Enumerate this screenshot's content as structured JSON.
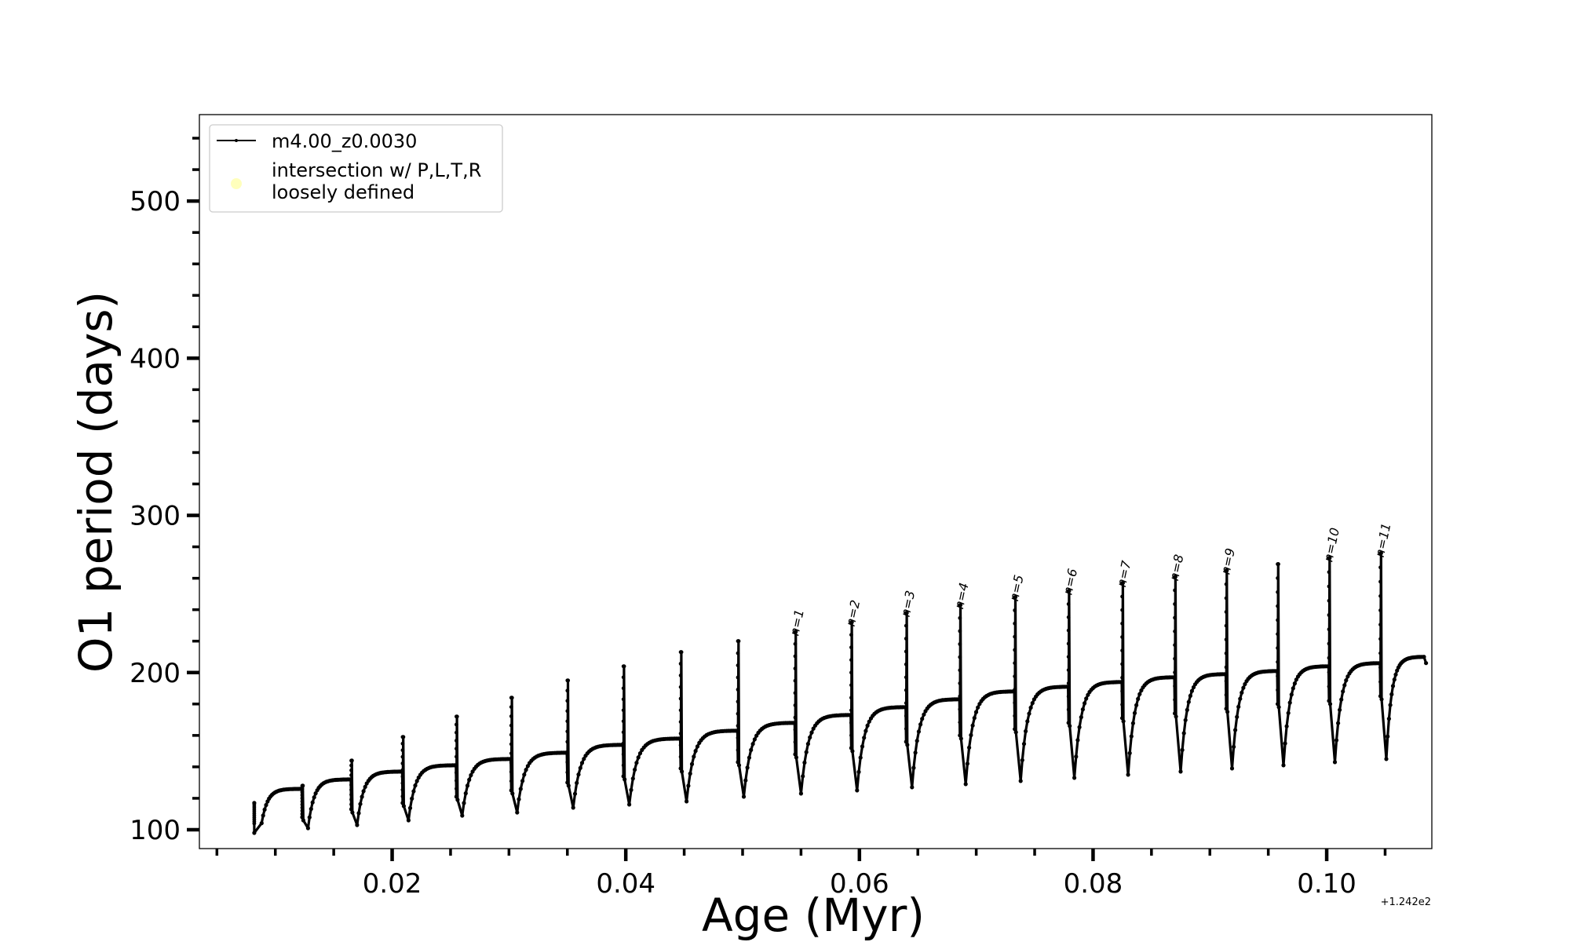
{
  "chart_data": {
    "type": "line",
    "title": "",
    "xlabel": "Age (Myr)",
    "ylabel": "O1 period (days)",
    "x_offset_label": "+1.242e2",
    "xlim": [
      0.0035,
      0.109
    ],
    "ylim": [
      88,
      555
    ],
    "x_ticks": [
      0.02,
      0.04,
      0.06,
      0.08,
      0.1
    ],
    "x_tick_labels": [
      "0.02",
      "0.04",
      "0.06",
      "0.08",
      "0.10"
    ],
    "x_minor_step": 0.005,
    "y_ticks": [
      100,
      200,
      300,
      400,
      500
    ],
    "y_tick_labels": [
      "100",
      "200",
      "300",
      "400",
      "500"
    ],
    "y_minor_step": 20,
    "grid": false,
    "legend": {
      "position": "top-left",
      "entries": [
        {
          "label": "m4.00_z0.0030",
          "marker": "line-dot",
          "color": "#000000"
        },
        {
          "label_line1": "intersection w/ P,L,T,R",
          "label_line2": "loosely defined",
          "marker": "circle",
          "color": "#ffffb0"
        }
      ]
    },
    "series": [
      {
        "name": "m4.00_z0.0030",
        "color": "#000000",
        "pulses": [
          {
            "t": 0.0082,
            "top": 117,
            "low": 98,
            "plateau": 126,
            "bottom": 104
          },
          {
            "t": 0.0123,
            "top": 128,
            "low": 101,
            "plateau": 132,
            "bottom": 108
          },
          {
            "t": 0.0165,
            "top": 144,
            "low": 103,
            "plateau": 137,
            "bottom": 113
          },
          {
            "t": 0.0209,
            "top": 159,
            "low": 106,
            "plateau": 141,
            "bottom": 117
          },
          {
            "t": 0.0255,
            "top": 172,
            "low": 109,
            "plateau": 145,
            "bottom": 121
          },
          {
            "t": 0.0302,
            "top": 184,
            "low": 111,
            "plateau": 149,
            "bottom": 125
          },
          {
            "t": 0.035,
            "top": 195,
            "low": 114,
            "plateau": 154,
            "bottom": 130
          },
          {
            "t": 0.0398,
            "top": 204,
            "low": 116,
            "plateau": 158,
            "bottom": 134
          },
          {
            "t": 0.0447,
            "top": 213,
            "low": 118,
            "plateau": 163,
            "bottom": 139
          },
          {
            "t": 0.0496,
            "top": 220,
            "low": 121,
            "plateau": 168,
            "bottom": 143
          },
          {
            "t": 0.0545,
            "top": 226,
            "low": 123,
            "plateau": 173,
            "bottom": 148
          },
          {
            "t": 0.0593,
            "top": 232,
            "low": 125,
            "plateau": 178,
            "bottom": 152
          },
          {
            "t": 0.064,
            "top": 238,
            "low": 127,
            "plateau": 183,
            "bottom": 156
          },
          {
            "t": 0.0686,
            "top": 243,
            "low": 129,
            "plateau": 188,
            "bottom": 160
          },
          {
            "t": 0.0733,
            "top": 248,
            "low": 131,
            "plateau": 191,
            "bottom": 164
          },
          {
            "t": 0.0779,
            "top": 252,
            "low": 133,
            "plateau": 194,
            "bottom": 168
          },
          {
            "t": 0.0825,
            "top": 257,
            "low": 135,
            "plateau": 197,
            "bottom": 171
          },
          {
            "t": 0.087,
            "top": 261,
            "low": 137,
            "plateau": 199,
            "bottom": 174
          },
          {
            "t": 0.0914,
            "top": 265,
            "low": 139,
            "plateau": 201,
            "bottom": 177
          },
          {
            "t": 0.0958,
            "top": 269,
            "low": 141,
            "plateau": 204,
            "bottom": 180
          },
          {
            "t": 0.1002,
            "top": 273,
            "low": 143,
            "plateau": 206,
            "bottom": 182
          },
          {
            "t": 0.1046,
            "top": 276,
            "low": 145,
            "plateau": 210,
            "bottom": 185
          }
        ],
        "end": {
          "t": 0.1085,
          "value": 206
        }
      }
    ],
    "annotations": [
      {
        "text": "n=1",
        "x": 0.0545,
        "y": 226
      },
      {
        "text": "n=2",
        "x": 0.0593,
        "y": 232
      },
      {
        "text": "n=3",
        "x": 0.064,
        "y": 238
      },
      {
        "text": "n=4",
        "x": 0.0686,
        "y": 243
      },
      {
        "text": "n=5",
        "x": 0.0733,
        "y": 248
      },
      {
        "text": "n=6",
        "x": 0.0779,
        "y": 252
      },
      {
        "text": "n=7",
        "x": 0.0825,
        "y": 257
      },
      {
        "text": "n=8",
        "x": 0.087,
        "y": 261
      },
      {
        "text": "n=9",
        "x": 0.0914,
        "y": 265
      },
      {
        "text": "n=10",
        "x": 0.1002,
        "y": 273
      },
      {
        "text": "n=11",
        "x": 0.1046,
        "y": 276
      }
    ]
  }
}
